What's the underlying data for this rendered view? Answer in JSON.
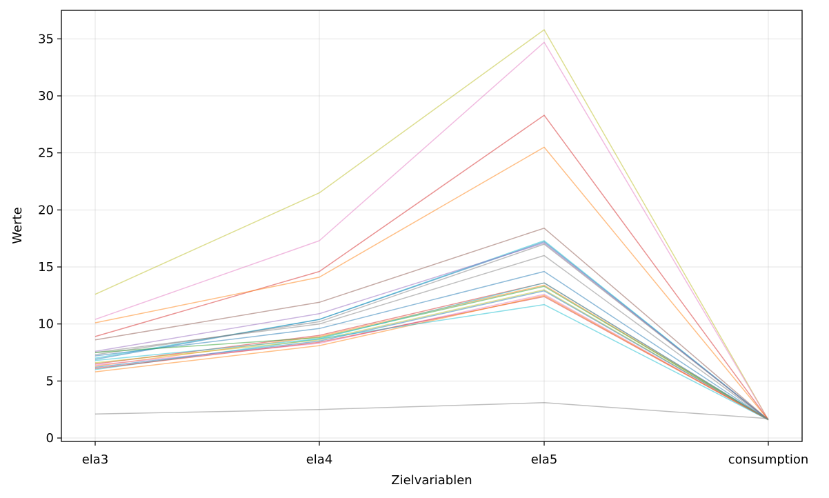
{
  "chart_data": {
    "type": "line",
    "title": "",
    "xlabel": "Zielvariablen",
    "ylabel": "Werte",
    "categories": [
      "ela3",
      "ela4",
      "ela5",
      "consumption"
    ],
    "ylim": [
      -0.3,
      37.5
    ],
    "yticks": [
      0,
      5,
      10,
      15,
      20,
      25,
      30,
      35
    ],
    "grid": true,
    "legend": "none",
    "series": [
      {
        "values": [
          12.6,
          21.5,
          35.8,
          1.6
        ],
        "color": "#bcbd22"
      },
      {
        "values": [
          10.4,
          17.3,
          34.7,
          1.6
        ],
        "color": "#e377c2"
      },
      {
        "values": [
          8.9,
          14.6,
          28.3,
          1.6
        ],
        "color": "#d62728"
      },
      {
        "values": [
          10.1,
          14.1,
          25.5,
          1.6
        ],
        "color": "#ff7f0e"
      },
      {
        "values": [
          8.6,
          11.9,
          18.4,
          1.6
        ],
        "color": "#8c564b"
      },
      {
        "values": [
          7.0,
          10.4,
          17.3,
          1.6
        ],
        "color": "#17becf"
      },
      {
        "values": [
          6.9,
          10.4,
          17.2,
          1.6
        ],
        "color": "#1f77b4"
      },
      {
        "values": [
          7.6,
          10.9,
          17.1,
          1.6
        ],
        "color": "#9467bd"
      },
      {
        "values": [
          7.3,
          10.2,
          17.0,
          1.6
        ],
        "color": "#7f7f7f"
      },
      {
        "values": [
          7.5,
          10.0,
          16.0,
          1.6
        ],
        "color": "#7f7f7f"
      },
      {
        "values": [
          7.2,
          9.6,
          14.6,
          1.6
        ],
        "color": "#1f77b4"
      },
      {
        "values": [
          6.5,
          9.0,
          13.6,
          1.6
        ],
        "color": "#d62728"
      },
      {
        "values": [
          6.3,
          8.9,
          13.4,
          1.6
        ],
        "color": "#ff7f0e"
      },
      {
        "values": [
          7.5,
          8.8,
          13.3,
          1.6
        ],
        "color": "#2ca02c"
      },
      {
        "values": [
          6.0,
          8.7,
          13.6,
          1.6
        ],
        "color": "#17becf"
      },
      {
        "values": [
          6.6,
          8.6,
          13.0,
          1.6
        ],
        "color": "#bcbd22"
      },
      {
        "values": [
          6.2,
          8.5,
          12.9,
          1.6
        ],
        "color": "#1f77b4"
      },
      {
        "values": [
          6.4,
          8.3,
          12.6,
          1.6
        ],
        "color": "#e377c2"
      },
      {
        "values": [
          6.1,
          8.4,
          12.4,
          1.6
        ],
        "color": "#d62728"
      },
      {
        "values": [
          5.8,
          8.1,
          12.5,
          1.6
        ],
        "color": "#ff7f0e"
      },
      {
        "values": [
          6.8,
          8.7,
          11.7,
          1.6
        ],
        "color": "#17becf"
      },
      {
        "values": [
          2.1,
          2.5,
          3.1,
          1.7
        ],
        "color": "#7f7f7f"
      }
    ]
  }
}
